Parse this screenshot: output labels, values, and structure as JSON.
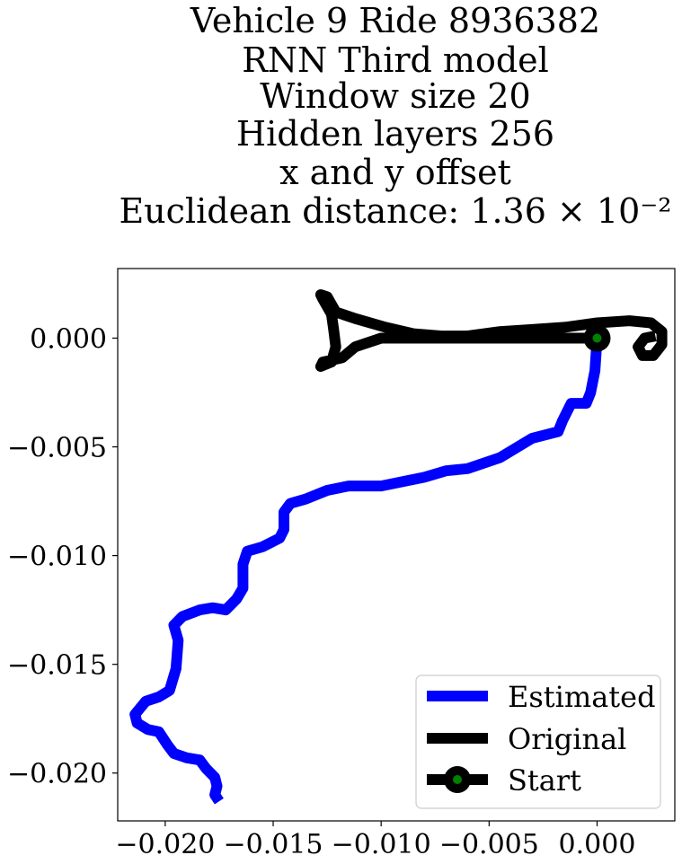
{
  "chart_data": {
    "type": "line",
    "title_lines": [
      "Vehicle 9 Ride 8936382",
      "RNN Third model",
      "Window size 20",
      "Hidden layers 256",
      "x and y offset",
      "Euclidean distance: 1.36 × 10⁻²"
    ],
    "xlabel": "",
    "ylabel": "",
    "xlim": [
      -0.0222,
      0.0036
    ],
    "ylim": [
      -0.0222,
      0.0032
    ],
    "x_ticks": [
      -0.02,
      -0.015,
      -0.01,
      -0.005,
      0.0
    ],
    "x_tick_labels": [
      "−0.020",
      "−0.015",
      "−0.010",
      "−0.005",
      "0.000"
    ],
    "y_ticks": [
      0.0,
      -0.005,
      -0.01,
      -0.015,
      -0.02
    ],
    "y_tick_labels": [
      "0.000",
      "−0.005",
      "−0.010",
      "−0.015",
      "−0.020"
    ],
    "grid": false,
    "legend_position": "lower-right",
    "series": [
      {
        "name": "Estimated",
        "color": "#0000ff",
        "points": [
          [
            0.0,
            0.0
          ],
          [
            -0.0001,
            -0.0015
          ],
          [
            -0.0003,
            -0.0025
          ],
          [
            -0.0005,
            -0.003
          ],
          [
            -0.0012,
            -0.003
          ],
          [
            -0.0016,
            -0.0038
          ],
          [
            -0.0018,
            -0.0043
          ],
          [
            -0.003,
            -0.0046
          ],
          [
            -0.0045,
            -0.0055
          ],
          [
            -0.006,
            -0.006
          ],
          [
            -0.007,
            -0.0061
          ],
          [
            -0.008,
            -0.0064
          ],
          [
            -0.01,
            -0.0068
          ],
          [
            -0.0115,
            -0.0068
          ],
          [
            -0.0125,
            -0.007
          ],
          [
            -0.0135,
            -0.0074
          ],
          [
            -0.0142,
            -0.0076
          ],
          [
            -0.0145,
            -0.008
          ],
          [
            -0.0145,
            -0.0088
          ],
          [
            -0.0147,
            -0.0092
          ],
          [
            -0.0155,
            -0.0096
          ],
          [
            -0.0162,
            -0.0098
          ],
          [
            -0.0164,
            -0.0104
          ],
          [
            -0.0164,
            -0.0115
          ],
          [
            -0.0167,
            -0.012
          ],
          [
            -0.0172,
            -0.0125
          ],
          [
            -0.0178,
            -0.0124
          ],
          [
            -0.0184,
            -0.0125
          ],
          [
            -0.0192,
            -0.0128
          ],
          [
            -0.0196,
            -0.0132
          ],
          [
            -0.0194,
            -0.0139
          ],
          [
            -0.0195,
            -0.0152
          ],
          [
            -0.0198,
            -0.0162
          ],
          [
            -0.0203,
            -0.0165
          ],
          [
            -0.0209,
            -0.0167
          ],
          [
            -0.0214,
            -0.0173
          ],
          [
            -0.0213,
            -0.0177
          ],
          [
            -0.0208,
            -0.018
          ],
          [
            -0.0203,
            -0.0181
          ],
          [
            -0.0199,
            -0.0187
          ],
          [
            -0.0196,
            -0.0191
          ],
          [
            -0.019,
            -0.0193
          ],
          [
            -0.0184,
            -0.0194
          ],
          [
            -0.0181,
            -0.0198
          ],
          [
            -0.0177,
            -0.0202
          ],
          [
            -0.0176,
            -0.0206
          ],
          [
            -0.0177,
            -0.021
          ],
          [
            -0.0175,
            -0.0213
          ]
        ]
      },
      {
        "name": "Original",
        "color": "#000000",
        "points": [
          [
            0.0,
            0.0
          ],
          [
            -0.0025,
            0.0
          ],
          [
            -0.005,
            0.0
          ],
          [
            -0.0075,
            0.0
          ],
          [
            -0.01,
            0.0
          ],
          [
            -0.0112,
            -0.0004
          ],
          [
            -0.0118,
            -0.0009
          ],
          [
            -0.0127,
            -0.0011
          ],
          [
            -0.0128,
            -0.0013
          ],
          [
            -0.0123,
            -0.0011
          ],
          [
            -0.0121,
            -0.0004
          ],
          [
            -0.0122,
            0.0004
          ],
          [
            -0.0123,
            0.0011
          ],
          [
            -0.0127,
            0.0018
          ],
          [
            -0.0128,
            0.002
          ],
          [
            -0.0125,
            0.0019
          ],
          [
            -0.0121,
            0.0012
          ],
          [
            -0.0112,
            0.0009
          ],
          [
            -0.0098,
            0.0005
          ],
          [
            -0.0085,
            0.0002
          ],
          [
            -0.0072,
            0.0001
          ],
          [
            -0.006,
            0.0001
          ],
          [
            -0.0045,
            0.0003
          ],
          [
            -0.003,
            0.0004
          ],
          [
            -0.0015,
            0.0005
          ],
          [
            0.0,
            0.0007
          ],
          [
            0.0015,
            0.0008
          ],
          [
            0.0025,
            0.0007
          ],
          [
            0.003,
            0.0003
          ],
          [
            0.003,
            -0.0003
          ],
          [
            0.0026,
            -0.0008
          ],
          [
            0.0021,
            -0.0008
          ],
          [
            0.0019,
            -0.0004
          ],
          [
            0.0022,
            0.0
          ],
          [
            0.0027,
            0.0001
          ]
        ]
      }
    ],
    "start_point": {
      "name": "Start",
      "x": 0.0,
      "y": 0.0,
      "marker_color": "#008000",
      "outline_color": "#000000"
    }
  }
}
